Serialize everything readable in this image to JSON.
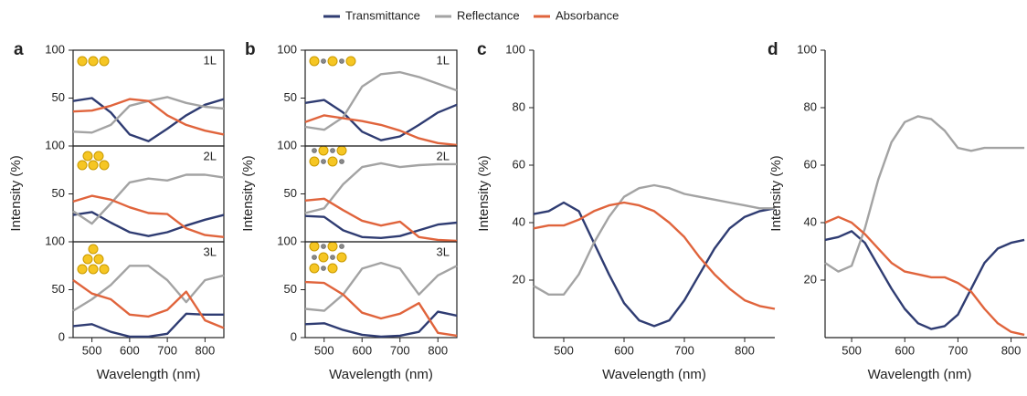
{
  "legend": [
    {
      "name": "Transmittance",
      "color": "#2f3c72"
    },
    {
      "name": "Reflectance",
      "color": "#a3a3a3"
    },
    {
      "name": "Absorbance",
      "color": "#e0643c"
    }
  ],
  "chart_data": [
    {
      "type": "line",
      "panel": "a",
      "xlabel": "Wavelength (nm)",
      "ylabel": "Intensity (%)",
      "xlim": [
        450,
        850
      ],
      "xticks": [
        500,
        600,
        700,
        800
      ],
      "subplots": [
        {
          "annotation": "1L",
          "ylim": [
            0,
            100
          ],
          "yticks": [
            50,
            100
          ],
          "x": [
            450,
            500,
            550,
            600,
            650,
            700,
            750,
            800,
            850
          ],
          "series": [
            {
              "color": "#2f3c72",
              "values": [
                47,
                50,
                35,
                12,
                5,
                18,
                32,
                43,
                49
              ]
            },
            {
              "color": "#a3a3a3",
              "values": [
                15,
                14,
                22,
                42,
                47,
                51,
                45,
                41,
                39
              ]
            },
            {
              "color": "#e0643c",
              "values": [
                36,
                37,
                42,
                49,
                47,
                32,
                22,
                16,
                12
              ]
            }
          ]
        },
        {
          "annotation": "2L",
          "ylim": [
            0,
            100
          ],
          "yticks": [
            50,
            100
          ],
          "x": [
            450,
            500,
            550,
            600,
            650,
            700,
            750,
            800,
            850
          ],
          "series": [
            {
              "color": "#2f3c72",
              "values": [
                28,
                31,
                20,
                10,
                6,
                10,
                17,
                23,
                28
              ]
            },
            {
              "color": "#a3a3a3",
              "values": [
                32,
                19,
                40,
                62,
                66,
                64,
                70,
                70,
                67
              ]
            },
            {
              "color": "#e0643c",
              "values": [
                42,
                48,
                44,
                36,
                30,
                29,
                14,
                7,
                5
              ]
            }
          ]
        },
        {
          "annotation": "3L",
          "ylim": [
            0,
            100
          ],
          "yticks": [
            0,
            50,
            100
          ],
          "x": [
            450,
            500,
            550,
            600,
            650,
            700,
            750,
            800,
            850
          ],
          "series": [
            {
              "color": "#2f3c72",
              "values": [
                12,
                14,
                6,
                1,
                1,
                4,
                25,
                24,
                24
              ]
            },
            {
              "color": "#a3a3a3",
              "values": [
                28,
                40,
                55,
                75,
                75,
                60,
                37,
                60,
                65
              ]
            },
            {
              "color": "#e0643c",
              "values": [
                60,
                46,
                40,
                24,
                22,
                29,
                48,
                18,
                10
              ]
            }
          ]
        }
      ]
    },
    {
      "type": "line",
      "panel": "b",
      "xlabel": "Wavelength (nm)",
      "ylabel": "Intensity (%)",
      "xlim": [
        450,
        850
      ],
      "xticks": [
        500,
        600,
        700,
        800
      ],
      "subplots": [
        {
          "annotation": "1L",
          "ylim": [
            0,
            100
          ],
          "yticks": [
            50,
            100
          ],
          "x": [
            450,
            500,
            550,
            600,
            650,
            700,
            750,
            800,
            850
          ],
          "series": [
            {
              "color": "#2f3c72",
              "values": [
                45,
                48,
                35,
                15,
                6,
                10,
                22,
                35,
                43
              ]
            },
            {
              "color": "#a3a3a3",
              "values": [
                20,
                17,
                30,
                62,
                75,
                77,
                72,
                65,
                58
              ]
            },
            {
              "color": "#e0643c",
              "values": [
                25,
                32,
                29,
                26,
                22,
                16,
                8,
                3,
                1
              ]
            }
          ]
        },
        {
          "annotation": "2L",
          "ylim": [
            0,
            100
          ],
          "yticks": [
            50,
            100
          ],
          "x": [
            450,
            500,
            550,
            600,
            650,
            700,
            750,
            800,
            850
          ],
          "series": [
            {
              "color": "#2f3c72",
              "values": [
                27,
                26,
                12,
                5,
                4,
                6,
                12,
                18,
                20
              ]
            },
            {
              "color": "#a3a3a3",
              "values": [
                30,
                35,
                60,
                78,
                82,
                78,
                80,
                81,
                81
              ]
            },
            {
              "color": "#e0643c",
              "values": [
                43,
                45,
                33,
                22,
                17,
                21,
                5,
                2,
                1
              ]
            }
          ]
        },
        {
          "annotation": "3L",
          "ylim": [
            0,
            100
          ],
          "yticks": [
            0,
            50,
            100
          ],
          "x": [
            450,
            500,
            550,
            600,
            650,
            700,
            750,
            800,
            850
          ],
          "series": [
            {
              "color": "#2f3c72",
              "values": [
                14,
                15,
                8,
                3,
                1,
                2,
                6,
                27,
                23
              ]
            },
            {
              "color": "#a3a3a3",
              "values": [
                30,
                28,
                45,
                72,
                78,
                72,
                45,
                65,
                75
              ]
            },
            {
              "color": "#e0643c",
              "values": [
                58,
                57,
                45,
                26,
                20,
                25,
                36,
                5,
                2
              ]
            }
          ]
        }
      ]
    },
    {
      "type": "line",
      "panel": "c",
      "xlabel": "Wavelength (nm)",
      "ylabel": "Intensity (%)",
      "xlim": [
        450,
        850
      ],
      "xticks": [
        500,
        600,
        700,
        800
      ],
      "ylim": [
        0,
        100
      ],
      "yticks": [
        20,
        40,
        60,
        80,
        100
      ],
      "x": [
        450,
        475,
        500,
        525,
        550,
        575,
        600,
        625,
        650,
        675,
        700,
        725,
        750,
        775,
        800,
        825,
        850
      ],
      "series": [
        {
          "color": "#2f3c72",
          "values": [
            43,
            44,
            47,
            44,
            33,
            22,
            12,
            6,
            4,
            6,
            13,
            22,
            31,
            38,
            42,
            44,
            45
          ]
        },
        {
          "color": "#a3a3a3",
          "values": [
            18,
            15,
            15,
            22,
            33,
            42,
            49,
            52,
            53,
            52,
            50,
            49,
            48,
            47,
            46,
            45,
            45
          ]
        },
        {
          "color": "#e0643c",
          "values": [
            38,
            39,
            39,
            41,
            44,
            46,
            47,
            46,
            44,
            40,
            35,
            28,
            22,
            17,
            13,
            11,
            10
          ]
        }
      ]
    },
    {
      "type": "line",
      "panel": "d",
      "xlabel": "Wavelength (nm)",
      "ylabel": "Intensity (%)",
      "xlim": [
        450,
        830
      ],
      "xticks": [
        500,
        600,
        700,
        800
      ],
      "ylim": [
        0,
        100
      ],
      "yticks": [
        20,
        40,
        60,
        80,
        100
      ],
      "x": [
        450,
        475,
        500,
        525,
        550,
        575,
        600,
        625,
        650,
        675,
        700,
        725,
        750,
        775,
        800,
        825
      ],
      "series": [
        {
          "color": "#2f3c72",
          "values": [
            34,
            35,
            37,
            33,
            25,
            17,
            10,
            5,
            3,
            4,
            8,
            17,
            26,
            31,
            33,
            34
          ]
        },
        {
          "color": "#a3a3a3",
          "values": [
            26,
            23,
            25,
            38,
            55,
            68,
            75,
            77,
            76,
            72,
            66,
            65,
            66,
            66,
            66,
            66
          ]
        },
        {
          "color": "#e0643c",
          "values": [
            40,
            42,
            40,
            36,
            31,
            26,
            23,
            22,
            21,
            21,
            19,
            16,
            10,
            5,
            2,
            1
          ]
        }
      ]
    }
  ]
}
